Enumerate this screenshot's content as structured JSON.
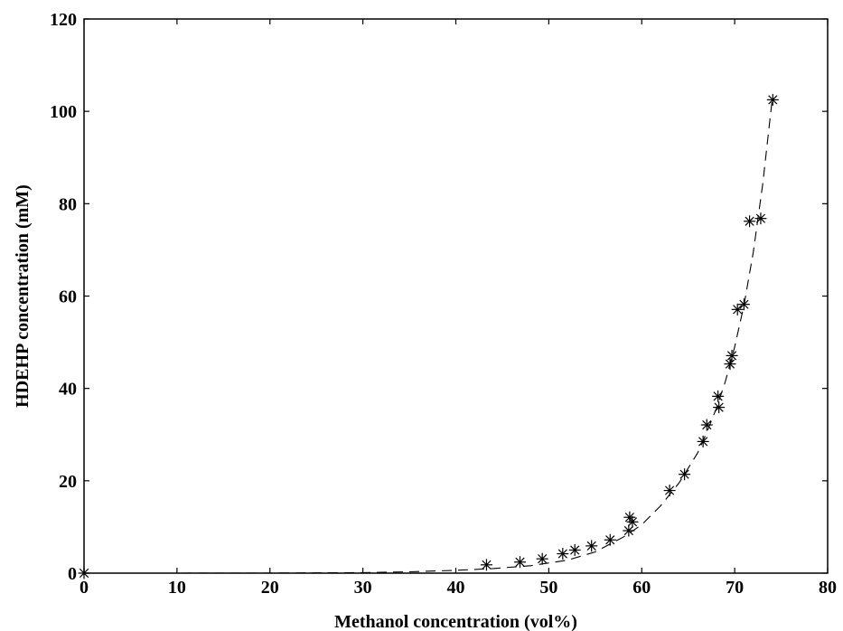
{
  "chart_data": {
    "type": "scatter",
    "title": "",
    "xlabel": "Methanol concentration (vol%)",
    "ylabel": "HDEHP concentration (mM)",
    "xlim": [
      0,
      80
    ],
    "ylim": [
      0,
      120
    ],
    "xticks": [
      0,
      10,
      20,
      30,
      40,
      50,
      60,
      70,
      80
    ],
    "yticks": [
      0,
      20,
      40,
      60,
      80,
      100,
      120
    ],
    "grid": false,
    "legend": "none",
    "marker": "asterisk",
    "marker_color": "#000000",
    "line_color": "#000000",
    "series": [
      {
        "kind": "points",
        "points": [
          [
            0,
            0
          ],
          [
            43.3,
            1.8
          ],
          [
            46.9,
            2.4
          ],
          [
            49.3,
            3.1
          ],
          [
            51.5,
            4.2
          ],
          [
            52.8,
            5.0
          ],
          [
            54.6,
            5.9
          ],
          [
            56.6,
            7.2
          ],
          [
            58.6,
            9.2
          ],
          [
            58.7,
            12.1
          ],
          [
            59.0,
            11.1
          ],
          [
            63.0,
            17.9
          ],
          [
            64.6,
            21.4
          ],
          [
            66.6,
            28.5
          ],
          [
            67.0,
            32.1
          ],
          [
            68.2,
            38.3
          ],
          [
            68.3,
            35.9
          ],
          [
            69.5,
            45.3
          ],
          [
            69.7,
            47.1
          ],
          [
            70.3,
            57.1
          ],
          [
            71.0,
            58.2
          ],
          [
            71.6,
            76.2
          ],
          [
            72.8,
            76.8
          ],
          [
            74.1,
            102.5
          ]
        ]
      },
      {
        "kind": "fit",
        "style": "dashed",
        "points": [
          [
            0,
            0
          ],
          [
            10,
            0
          ],
          [
            20,
            0.02
          ],
          [
            30,
            0.12
          ],
          [
            35,
            0.3
          ],
          [
            40,
            0.6
          ],
          [
            44,
            1.0
          ],
          [
            48,
            1.6
          ],
          [
            52,
            2.8
          ],
          [
            55,
            4.6
          ],
          [
            58,
            7.8
          ],
          [
            60,
            10.5
          ],
          [
            62,
            14.5
          ],
          [
            64,
            19.5
          ],
          [
            66,
            26.0
          ],
          [
            67,
            30.5
          ],
          [
            68,
            35.5
          ],
          [
            69,
            41.5
          ],
          [
            70,
            49.0
          ],
          [
            71,
            58.0
          ],
          [
            72,
            69.5
          ],
          [
            73,
            84.0
          ],
          [
            74,
            102.0
          ]
        ]
      }
    ]
  }
}
